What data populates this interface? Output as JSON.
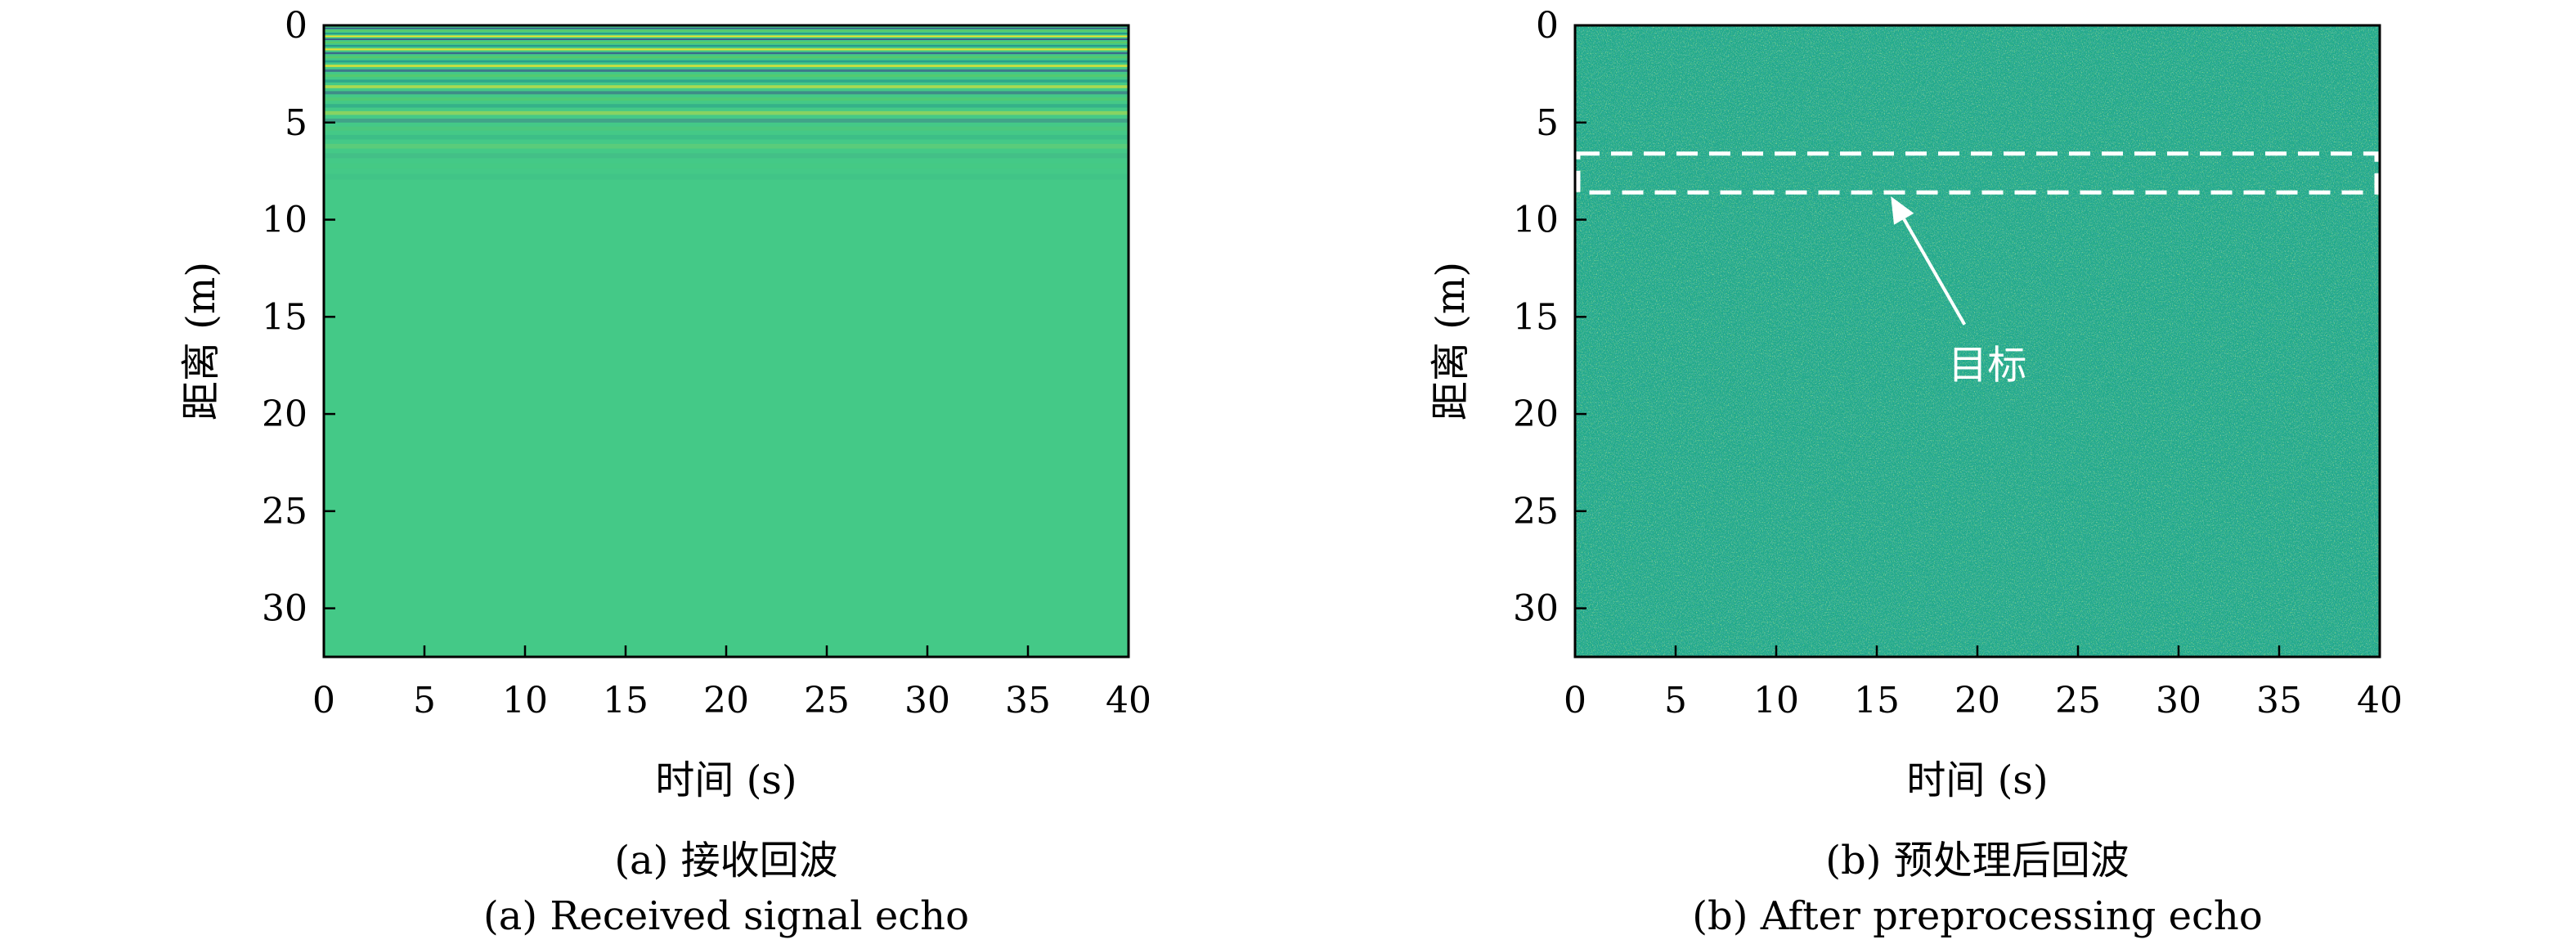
{
  "chart_data": [
    {
      "type": "heatmap",
      "caption_cn": "(a) 接收回波",
      "caption_en": "(a) Received signal echo",
      "xlabel": "时间 (s)",
      "ylabel": "距离 (m)",
      "xlim": [
        0,
        40
      ],
      "ylim": [
        32.5,
        0
      ],
      "xticks": [
        "0",
        "5",
        "10",
        "15",
        "20",
        "25",
        "30",
        "35",
        "40"
      ],
      "yticks": [
        "0",
        "5",
        "10",
        "15",
        "20",
        "25",
        "30"
      ],
      "colormap": "viridis",
      "background_color": "#44c987",
      "near_range_stripes": {
        "range_start": 0,
        "range_end": 8,
        "colors": [
          "#fde725",
          "#3b528b",
          "#5ec962",
          "#21918c"
        ]
      },
      "grid": false
    },
    {
      "type": "heatmap",
      "caption_cn": "(b) 预处理后回波",
      "caption_en": "(b) After preprocessing echo",
      "xlabel": "时间 (s)",
      "ylabel": "距离 (m)",
      "xlim": [
        0,
        40
      ],
      "ylim": [
        32.5,
        0
      ],
      "xticks": [
        "0",
        "5",
        "10",
        "15",
        "20",
        "25",
        "30",
        "35",
        "40"
      ],
      "yticks": [
        "0",
        "5",
        "10",
        "15",
        "20",
        "25",
        "30"
      ],
      "colormap": "viridis",
      "background_color": "#20a98a",
      "noise_colors": [
        "#22a884",
        "#2a9d8f",
        "#35b779",
        "#1f968b",
        "#6ccd5a"
      ],
      "target_box": {
        "x_start": 0,
        "x_end": 40,
        "range_start": 6.6,
        "range_end": 8.6,
        "color": "#ffffff"
      },
      "annotation": {
        "text": "目标",
        "arrow_tip": [
          15.7,
          8.8
        ],
        "text_pos": [
          20.5,
          17.5
        ]
      },
      "grid": false
    }
  ]
}
